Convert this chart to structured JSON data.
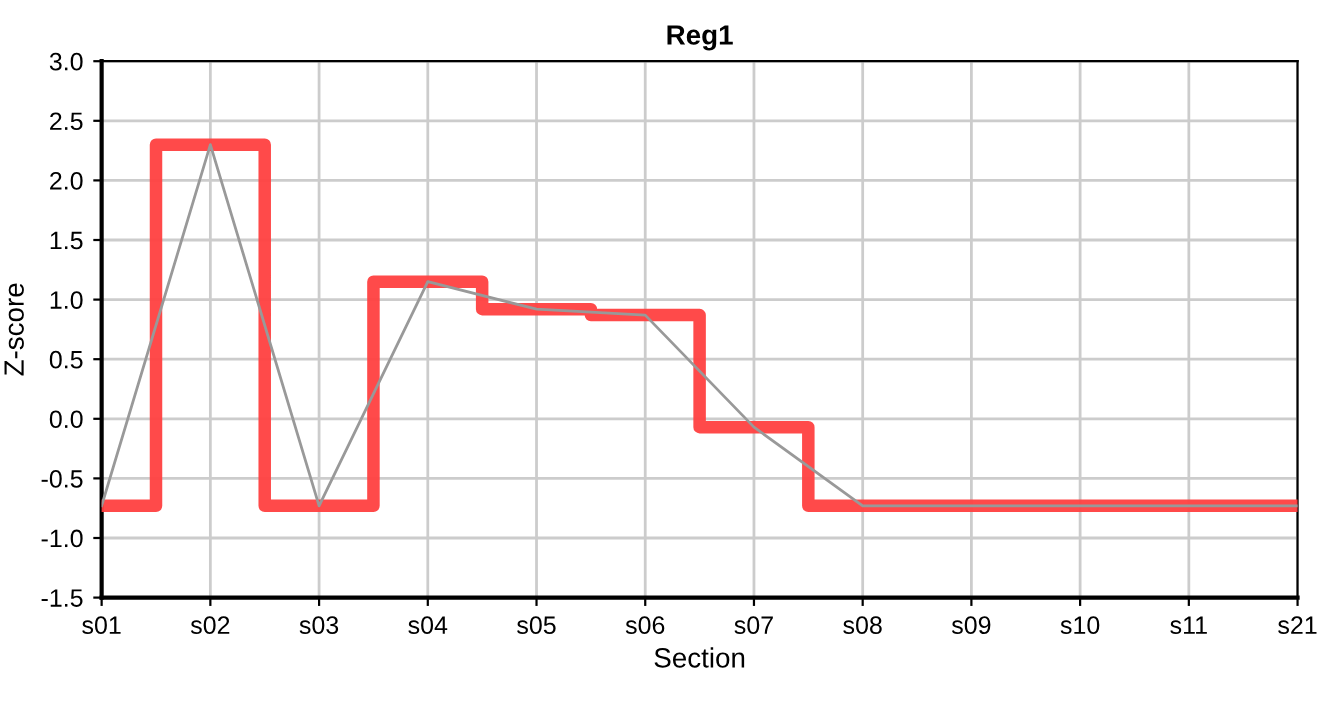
{
  "chart_data": {
    "type": "step",
    "title": "Reg1",
    "xlabel": "Section",
    "ylabel": "Z-score",
    "categories": [
      "s01",
      "s02",
      "s03",
      "s04",
      "s05",
      "s06",
      "s07",
      "s08",
      "s09",
      "s10",
      "s11",
      "s21"
    ],
    "series": [
      {
        "color": "#ff4040",
        "values": [
          -0.73,
          2.3,
          -0.73,
          1.15,
          0.92,
          0.87,
          -0.07,
          -0.73,
          -0.73,
          -0.73,
          -0.73,
          -0.73
        ]
      },
      {
        "type": "line",
        "color": "#999999",
        "values": [
          -0.73,
          2.3,
          -0.73,
          1.15,
          0.92,
          0.87,
          -0.07,
          -0.73,
          -0.73,
          -0.73,
          -0.73,
          -0.73
        ]
      }
    ],
    "ylim": [
      -1.5,
      3.0
    ],
    "yticks": [
      {
        "value": -1.5,
        "label": "-1.5"
      },
      {
        "value": -1.0,
        "label": "-1.0"
      },
      {
        "value": -0.5,
        "label": "-0.5"
      },
      {
        "value": 0.0,
        "label": "0.0"
      },
      {
        "value": 0.5,
        "label": "0.5"
      },
      {
        "value": 1.0,
        "label": "1.0"
      },
      {
        "value": 1.5,
        "label": "1.5"
      },
      {
        "value": 2.0,
        "label": "2.0"
      },
      {
        "value": 2.5,
        "label": "2.5"
      },
      {
        "value": 3.0,
        "label": "3.0"
      }
    ],
    "grid": true
  }
}
